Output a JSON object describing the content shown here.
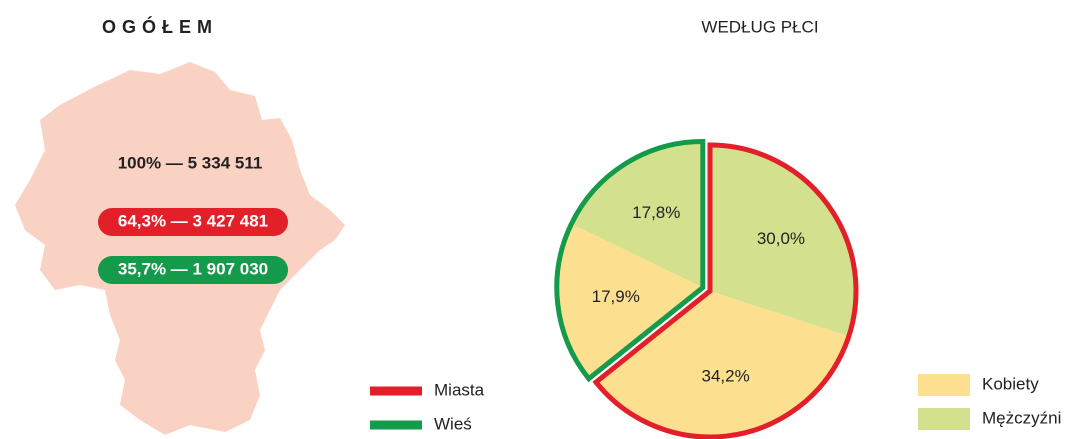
{
  "map": {
    "title": "OGÓŁEM",
    "total": "100% — 5 334 511",
    "urban": "64,3% — 3 427 481",
    "rural": "35,7% — 1 907 030"
  },
  "chart_data": {
    "type": "pie",
    "title": "WEDŁUG PŁCI",
    "values": [
      30.0,
      34.2,
      17.9,
      17.8
    ],
    "value_labels": [
      "30,0%",
      "34,2%",
      "17,9%",
      "17,8%"
    ],
    "colors": [
      "#d3e18e",
      "#fde08f",
      "#fde08f",
      "#d3e18e"
    ],
    "outline_colors": [
      "#e3202a",
      "#e3202a",
      "#139a4a",
      "#139a4a"
    ],
    "fill_legend": [
      {
        "name": "Kobiety",
        "color": "#fde08f"
      },
      {
        "name": "Mężczyźni",
        "color": "#d3e18e"
      }
    ],
    "outline_legend": [
      {
        "name": "Miasta",
        "color": "#e3202a"
      },
      {
        "name": "Wieś",
        "color": "#139a4a"
      }
    ]
  }
}
